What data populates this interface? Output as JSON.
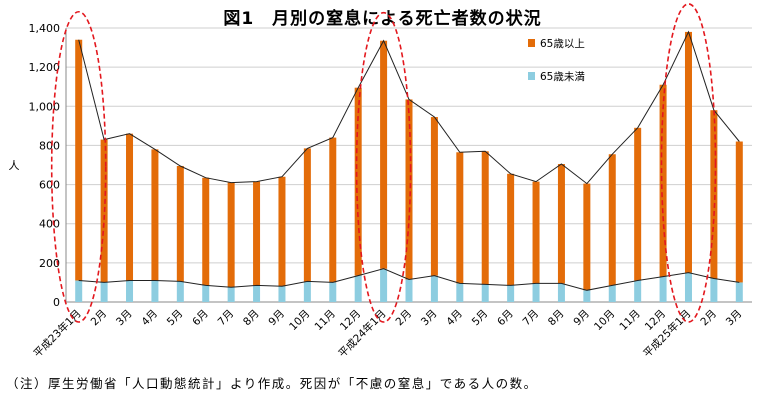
{
  "chart_data": {
    "type": "bar",
    "stacked": true,
    "title": "図1　月別の窒息による死亡者数の状況",
    "ylabel": "人",
    "xlabel": "",
    "ylim": [
      0,
      1400
    ],
    "yticks": [
      0,
      200,
      400,
      600,
      800,
      1000,
      1200,
      1400
    ],
    "ytick_labels": [
      "0",
      "200",
      "400",
      "600",
      "800",
      "1,000",
      "1,200",
      "1,400"
    ],
    "grid": true,
    "legend_position": "top-right",
    "colors": {
      "under65": "#8DCDE0",
      "over65": "#E36C09",
      "total_line": "#222222",
      "highlight": "#E3181E"
    },
    "categories": [
      "平成23年1月",
      "2月",
      "3月",
      "4月",
      "5月",
      "6月",
      "7月",
      "8月",
      "9月",
      "10月",
      "11月",
      "12月",
      "平成24年1月",
      "2月",
      "3月",
      "4月",
      "5月",
      "6月",
      "7月",
      "8月",
      "9月",
      "10月",
      "11月",
      "12月",
      "平成25年1月",
      "2月",
      "3月"
    ],
    "series": [
      {
        "name": "65歳以上",
        "values": [
          1230,
          730,
          750,
          670,
          590,
          550,
          535,
          530,
          560,
          680,
          740,
          960,
          1165,
          920,
          810,
          670,
          680,
          570,
          520,
          610,
          545,
          670,
          780,
          980,
          1230,
          860,
          720
        ]
      },
      {
        "name": "65歳未満",
        "values": [
          110,
          100,
          110,
          110,
          105,
          85,
          75,
          85,
          80,
          105,
          100,
          135,
          170,
          115,
          135,
          95,
          90,
          85,
          95,
          95,
          60,
          85,
          110,
          130,
          150,
          120,
          100
        ]
      }
    ],
    "totals": [
      1340,
      830,
      860,
      780,
      695,
      635,
      610,
      615,
      640,
      785,
      840,
      1095,
      1335,
      1035,
      945,
      765,
      770,
      655,
      615,
      705,
      605,
      755,
      890,
      1110,
      1380,
      980,
      820
    ],
    "highlighted_categories": [
      "平成23年1月",
      "平成24年1月",
      "平成25年1月"
    ]
  },
  "note": "（注）厚生労働省「人口動態統計」より作成。死因が「不慮の窒息」である人の数。"
}
